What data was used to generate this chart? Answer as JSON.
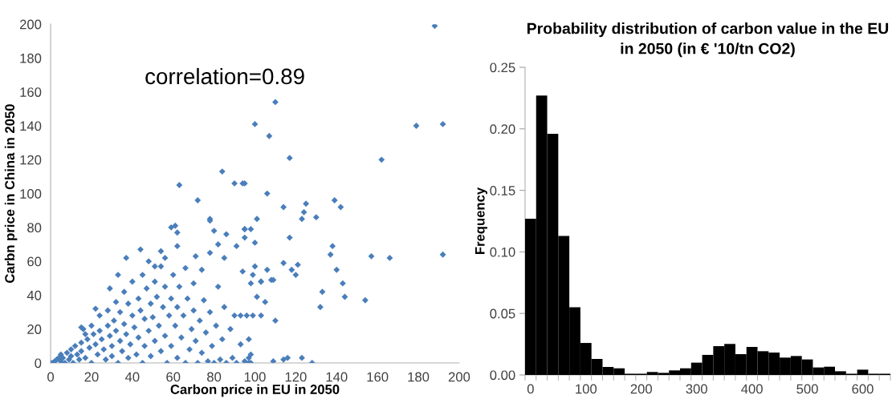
{
  "chart_data": [
    {
      "type": "scatter",
      "xlabel": "Carbon price in EU in 2050",
      "ylabel": "Carbn price in China in 2050",
      "annotations": [
        "correlation=0.89"
      ],
      "marker": "diamond",
      "grid": false,
      "legend": false,
      "xlim": [
        0,
        200
      ],
      "xticks": [
        0,
        20,
        40,
        60,
        80,
        100,
        120,
        140,
        160,
        180,
        200
      ],
      "ylim": [
        0,
        200
      ],
      "yticks": [
        0,
        20,
        40,
        60,
        80,
        100,
        120,
        140,
        160,
        180,
        200
      ],
      "series": [
        {
          "color": "#4a7ebb",
          "x": [
            188,
            192,
            179,
            162,
            192,
            166,
            157,
            154,
            110,
            100,
            107,
            117,
            94,
            106,
            114,
            125,
            124,
            123,
            139,
            142,
            130,
            101,
            95,
            98,
            95,
            100,
            117,
            137,
            138,
            100,
            106,
            114,
            118,
            121,
            120,
            140,
            99,
            103,
            108,
            109,
            98,
            143,
            133,
            144,
            101,
            105,
            132,
            110,
            99,
            103,
            96,
            93,
            97,
            98,
            109,
            114,
            116,
            123,
            128,
            97,
            84,
            90,
            95,
            63,
            72,
            78,
            78,
            59,
            61,
            62,
            80,
            86,
            95,
            62,
            82,
            44,
            37,
            54,
            91,
            56,
            85,
            71,
            48,
            33,
            51,
            78,
            94,
            103,
            29,
            17,
            22,
            15,
            0,
            1,
            2,
            3,
            4,
            5,
            5,
            6,
            7,
            8,
            9,
            10,
            10,
            11,
            12,
            13,
            14,
            15,
            15,
            16,
            17,
            18,
            19,
            20,
            20,
            21,
            22,
            23,
            24,
            24,
            25,
            26,
            27,
            28,
            28,
            29,
            30,
            30,
            31,
            32,
            32,
            33,
            34,
            34,
            35,
            36,
            36,
            37,
            38,
            38,
            39,
            40,
            40,
            41,
            42,
            43,
            43,
            44,
            45,
            45,
            46,
            46,
            47,
            48,
            49,
            49,
            50,
            51,
            51,
            52,
            53,
            54,
            54,
            55,
            56,
            56,
            57,
            58,
            59,
            59,
            60,
            61,
            62,
            62,
            63,
            64,
            65,
            66,
            66,
            67,
            68,
            69,
            70,
            70,
            71,
            72,
            73,
            74,
            74,
            75,
            76,
            77,
            78,
            79,
            80,
            81,
            82,
            83,
            84,
            85,
            86,
            88,
            89,
            90,
            91,
            93,
            95,
            97,
            98
          ],
          "values": [
            199,
            141,
            140,
            120,
            64,
            62,
            63,
            37,
            154,
            141,
            134,
            121,
            106,
            100,
            92,
            94,
            89,
            85,
            96,
            92,
            86,
            85,
            79,
            79,
            74,
            71,
            74,
            64,
            69,
            57,
            55,
            59,
            55,
            58,
            52,
            55,
            52,
            48,
            49,
            49,
            47,
            47,
            42,
            39,
            39,
            36,
            33,
            25,
            28,
            28,
            28,
            28,
            14,
            5,
            1,
            2,
            3,
            3,
            0,
            0,
            113,
            106,
            106,
            105,
            96,
            85,
            84,
            80,
            81,
            77,
            78,
            76,
            79,
            69,
            70,
            67,
            62,
            66,
            69,
            62,
            62,
            63,
            60,
            52,
            57,
            65,
            54,
            48,
            44,
            17,
            32,
            21,
            0,
            0,
            1,
            2,
            3,
            1,
            5,
            3,
            0,
            6,
            2,
            8,
            4,
            0,
            10,
            5,
            2,
            12,
            7,
            20,
            3,
            14,
            9,
            0,
            22,
            17,
            11,
            5,
            28,
            19,
            14,
            8,
            2,
            31,
            22,
            16,
            10,
            4,
            25,
            36,
            19,
            0,
            13,
            30,
            7,
            42,
            23,
            17,
            35,
            3,
            11,
            28,
            48,
            21,
            5,
            38,
            15,
            31,
            52,
            0,
            26,
            10,
            44,
            19,
            35,
            4,
            27,
            48,
            13,
            39,
            22,
            57,
            7,
            33,
            45,
            16,
            0,
            28,
            38,
            10,
            52,
            22,
            33,
            3,
            45,
            15,
            28,
            56,
            0,
            38,
            8,
            20,
            47,
            31,
            13,
            0,
            25,
            55,
            6,
            37,
            18,
            1,
            30,
            10,
            0,
            22,
            45,
            2,
            14,
            33,
            0,
            20,
            3,
            28,
            0,
            11,
            1,
            3,
            0
          ]
        }
      ]
    },
    {
      "type": "bar",
      "title": "Probability distribution of carbon value in the EU\nin 2050 (in € '10/tn CO2)",
      "ylabel": "Frequency",
      "grid": false,
      "legend": false,
      "categories": [
        "0",
        null,
        null,
        null,
        null,
        "100",
        null,
        null,
        null,
        null,
        "200",
        null,
        null,
        null,
        null,
        "300",
        null,
        null,
        null,
        null,
        "400",
        null,
        null,
        null,
        null,
        "500",
        null,
        null,
        null,
        null,
        "600",
        null,
        null
      ],
      "ylim": [
        0,
        0.25
      ],
      "yticks": [
        {
          "value": 0,
          "label": "0.00"
        },
        {
          "value": 0.05,
          "label": "0.05"
        },
        {
          "value": 0.1,
          "label": "0.10"
        },
        {
          "value": 0.15,
          "label": "0.15"
        },
        {
          "value": 0.2,
          "label": "0.20"
        },
        {
          "value": 0.25,
          "label": "0.25"
        }
      ],
      "series": [
        {
          "color": "#000000",
          "values": [
            0.127,
            0.227,
            0.196,
            0.113,
            0.055,
            0.026,
            0.013,
            0.0065,
            0.0054,
            0.001,
            0.001,
            0.0024,
            0.0017,
            0.0037,
            0.0054,
            0.01,
            0.0163,
            0.0234,
            0.0252,
            0.0169,
            0.0228,
            0.0193,
            0.0182,
            0.0141,
            0.0154,
            0.0126,
            0.0061,
            0.0067,
            0.003,
            0.001,
            0.0043,
            0.001,
            0.001
          ]
        }
      ]
    }
  ]
}
